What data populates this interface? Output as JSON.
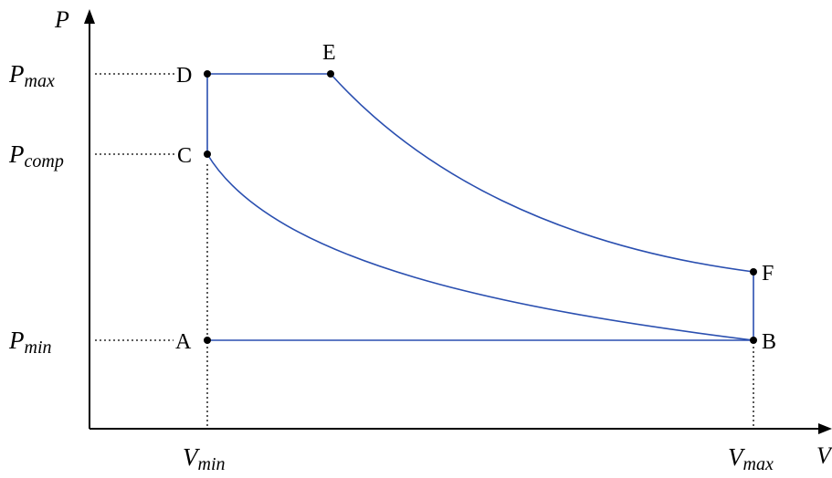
{
  "diagram": {
    "axes": {
      "y_title": "P",
      "x_title": "V"
    },
    "y_ticks": {
      "pmax": {
        "main": "P",
        "sub": "max"
      },
      "pcomp": {
        "main": "P",
        "sub": "comp"
      },
      "pmin": {
        "main": "P",
        "sub": "min"
      }
    },
    "x_ticks": {
      "vmin": {
        "main": "V",
        "sub": "min"
      },
      "vmax": {
        "main": "V",
        "sub": "max"
      }
    },
    "points": {
      "A": "A",
      "B": "B",
      "C": "C",
      "D": "D",
      "E": "E",
      "F": "F"
    },
    "colors": {
      "curve": "#2a4fb0",
      "axis": "#000000",
      "point": "#000000"
    }
  }
}
